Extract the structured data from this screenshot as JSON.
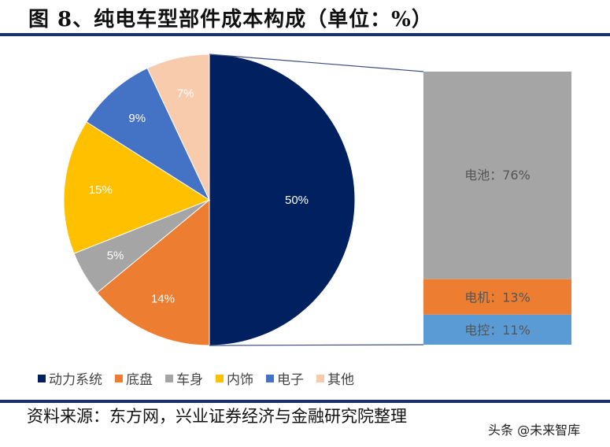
{
  "title": "图 8、纯电车型部件成本构成（单位：%）",
  "source": "资料来源：东方网，兴业证券经济与金融研究院整理",
  "watermark": "头条 @未来智库",
  "colors": {
    "rule": "#1a2f6b",
    "powertrain": "#002060",
    "chassis": "#ed7d31",
    "body": "#a5a5a5",
    "interior": "#ffc000",
    "electronics": "#4472c4",
    "other": "#f8cbad",
    "battery": "#a5a5a5",
    "motor": "#ed7d31",
    "controller": "#5b9bd5"
  },
  "legend": [
    {
      "label": "动力系统",
      "color": "#002060"
    },
    {
      "label": "底盘",
      "color": "#ed7d31"
    },
    {
      "label": "车身",
      "color": "#a5a5a5"
    },
    {
      "label": "内饰",
      "color": "#ffc000"
    },
    {
      "label": "电子",
      "color": "#4472c4"
    },
    {
      "label": "其他",
      "color": "#f8cbad"
    }
  ],
  "pie_labels": [
    "50%",
    "14%",
    "5%",
    "15%",
    "9%",
    "7%"
  ],
  "bar_labels": [
    "电池：76%",
    "电机：13%",
    "电控：11%"
  ],
  "chart_data": {
    "type": "pie",
    "title": "图 8、纯电车型部件成本构成（单位：%）",
    "categories": [
      "动力系统",
      "底盘",
      "车身",
      "内饰",
      "电子",
      "其他"
    ],
    "values": [
      50,
      14,
      5,
      15,
      9,
      7
    ],
    "unit": "%",
    "legend_position": "bottom",
    "breakdown": {
      "type": "stacked_bar",
      "parent": "动力系统",
      "categories": [
        "电池",
        "电机",
        "电控"
      ],
      "values": [
        76,
        13,
        11
      ],
      "unit": "%"
    }
  }
}
